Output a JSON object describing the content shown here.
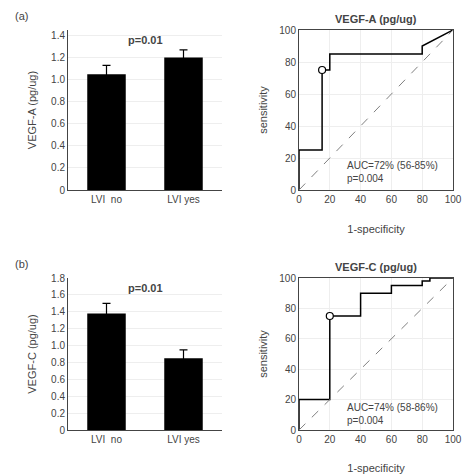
{
  "chart_data": [
    {
      "type": "bar",
      "panel_label": "(a)",
      "annotation": "p=0.01",
      "ylabel": "VEGF-A (pg/ug)",
      "categories": [
        "LVI  no",
        "LVI yes"
      ],
      "values": [
        1.05,
        1.2
      ],
      "errors": [
        0.08,
        0.07
      ],
      "color": "#000000",
      "ylim": [
        0,
        1.45
      ],
      "yticks": [
        0,
        0.2,
        0.4,
        0.6,
        0.8,
        {
          "value": 1.0,
          "label": "1.0"
        },
        1.2,
        1.4
      ]
    },
    {
      "type": "line",
      "title": "VEGF-A (pg/ug)",
      "xlabel": "1-specificity",
      "ylabel": "sensitivity",
      "annotation": "AUC=72% (56-85%)\np=0.004",
      "x": [
        0,
        0,
        15,
        15,
        20,
        20,
        80,
        80,
        100
      ],
      "values": [
        0,
        25,
        25,
        75,
        75,
        85,
        85,
        90,
        100
      ],
      "color": "#000000",
      "reference_line": {
        "x": [
          0,
          100
        ],
        "y": [
          0,
          100
        ],
        "line_style": "dashed",
        "color": "gray"
      },
      "highlight_point": {
        "x": 15,
        "y": 75,
        "marker": "open circle"
      },
      "xlim": [
        0,
        100
      ],
      "ylim": [
        0,
        100
      ],
      "xticks": [
        0,
        20,
        40,
        60,
        80,
        100
      ],
      "yticks": [
        0,
        20,
        40,
        60,
        80,
        100
      ]
    },
    {
      "type": "bar",
      "panel_label": "(b)",
      "annotation": "p=0.01",
      "ylabel": "VEGF-C (pg/ug)",
      "categories": [
        "LVI  no",
        "LVI yes"
      ],
      "values": [
        1.38,
        0.85
      ],
      "errors": [
        0.12,
        0.1
      ],
      "color": "#000000",
      "ylim": [
        0,
        1.8
      ],
      "yticks": [
        0,
        0.2,
        0.4,
        0.6,
        0.8,
        {
          "value": 1.0,
          "label": "1.0"
        },
        1.2,
        1.4,
        1.6,
        1.8
      ]
    },
    {
      "type": "line",
      "title": "VEGF-C (pg/ug)",
      "xlabel": "1-specificity",
      "ylabel": "sensitivity",
      "annotation": "AUC=74% (58-86%)\np=0.004",
      "x": [
        0,
        0,
        20,
        20,
        40,
        40,
        60,
        60,
        80,
        80,
        85,
        85,
        100,
        100
      ],
      "values": [
        0,
        20,
        20,
        75,
        75,
        90,
        90,
        95,
        95,
        98,
        98,
        100,
        100,
        100
      ],
      "color": "#000000",
      "reference_line": {
        "x": [
          0,
          100
        ],
        "y": [
          0,
          100
        ],
        "line_style": "dashed",
        "color": "gray"
      },
      "highlight_point": {
        "x": 20,
        "y": 75,
        "marker": "open circle"
      },
      "xlim": [
        0,
        100
      ],
      "ylim": [
        0,
        100
      ],
      "xticks": [
        0,
        20,
        40,
        60,
        80,
        100
      ],
      "yticks": [
        0,
        20,
        40,
        60,
        80,
        100
      ]
    }
  ]
}
